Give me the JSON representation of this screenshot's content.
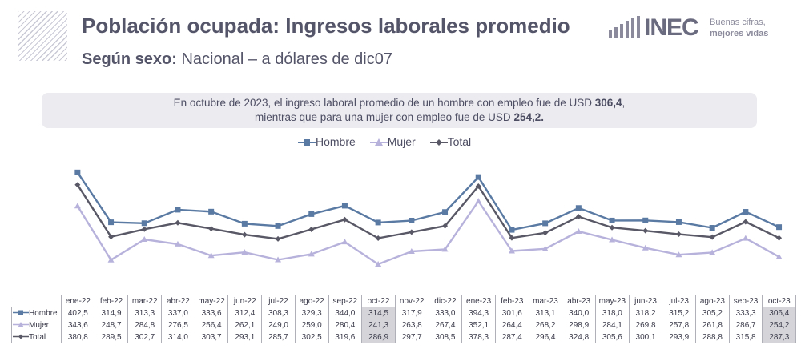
{
  "header": {
    "title": "Población ocupada: Ingresos laborales promedio",
    "subtitle_bold": "Según sexo:",
    "subtitle_rest": " Nacional – a dólares de dic07"
  },
  "logo": {
    "word": "INEC",
    "tagline1": "Buenas cifras,",
    "tagline2": "mejores vidas"
  },
  "note": {
    "line1_pre": "En octubre de 2023, el ingreso laboral promedio de un hombre con empleo fue de USD ",
    "line1_val": "306,4",
    "line1_post": ",",
    "line2_pre": "mientras que para una mujer con empleo fue de USD ",
    "line2_val": "254,2."
  },
  "colors": {
    "hombre": "#5a7aa3",
    "mujer": "#b7b2dc",
    "total": "#585866"
  },
  "chart_data": {
    "type": "line",
    "categories": [
      "ene-22",
      "feb-22",
      "mar-22",
      "abr-22",
      "may-22",
      "jun-22",
      "jul-22",
      "ago-22",
      "sep-22",
      "oct-22",
      "nov-22",
      "dic-22",
      "ene-23",
      "feb-23",
      "mar-23",
      "abr-23",
      "may-23",
      "jun-23",
      "jul-23",
      "ago-23",
      "sep-23",
      "oct-23"
    ],
    "series": [
      {
        "name": "Hombre",
        "values": [
          402.5,
          314.9,
          313.3,
          337.0,
          333.6,
          312.4,
          308.3,
          329.3,
          344.0,
          314.5,
          317.9,
          333.0,
          394.3,
          301.6,
          313.1,
          340.0,
          318.0,
          318.2,
          315.2,
          305.2,
          333.3,
          306.4
        ],
        "labels": [
          "402,5",
          "314,9",
          "313,3",
          "337,0",
          "333,6",
          "312,4",
          "308,3",
          "329,3",
          "344,0",
          "314,5",
          "317,9",
          "333,0",
          "394,3",
          "301,6",
          "313,1",
          "340,0",
          "318,0",
          "318,2",
          "315,2",
          "305,2",
          "333,3",
          "306,4"
        ]
      },
      {
        "name": "Mujer",
        "values": [
          343.6,
          248.7,
          284.8,
          276.5,
          256.4,
          262.1,
          249.0,
          259.0,
          280.4,
          241.3,
          263.8,
          267.4,
          352.1,
          264.4,
          268.2,
          298.9,
          284.1,
          269.8,
          257.8,
          261.8,
          286.7,
          254.2
        ],
        "labels": [
          "343,6",
          "248,7",
          "284,8",
          "276,5",
          "256,4",
          "262,1",
          "249,0",
          "259,0",
          "280,4",
          "241,3",
          "263,8",
          "267,4",
          "352,1",
          "264,4",
          "268,2",
          "298,9",
          "284,1",
          "269,8",
          "257,8",
          "261,8",
          "286,7",
          "254,2"
        ]
      },
      {
        "name": "Total",
        "values": [
          380.8,
          289.5,
          302.7,
          314.0,
          303.7,
          293.1,
          285.7,
          302.5,
          319.6,
          286.9,
          297.7,
          308.5,
          378.3,
          287.4,
          296.4,
          324.8,
          305.6,
          300.1,
          293.9,
          288.8,
          315.8,
          287.3
        ],
        "labels": [
          "380,8",
          "289,5",
          "302,7",
          "314,0",
          "303,7",
          "293,1",
          "285,7",
          "302,5",
          "319,6",
          "286,9",
          "297,7",
          "308,5",
          "378,3",
          "287,4",
          "296,4",
          "324,8",
          "305,6",
          "300,1",
          "293,9",
          "288,8",
          "315,8",
          "287,3"
        ]
      }
    ],
    "highlighted_columns": [
      "oct-22",
      "oct-23"
    ],
    "ylim": [
      230,
      410
    ],
    "grid": false,
    "legend": "top-center",
    "table_below": true
  }
}
